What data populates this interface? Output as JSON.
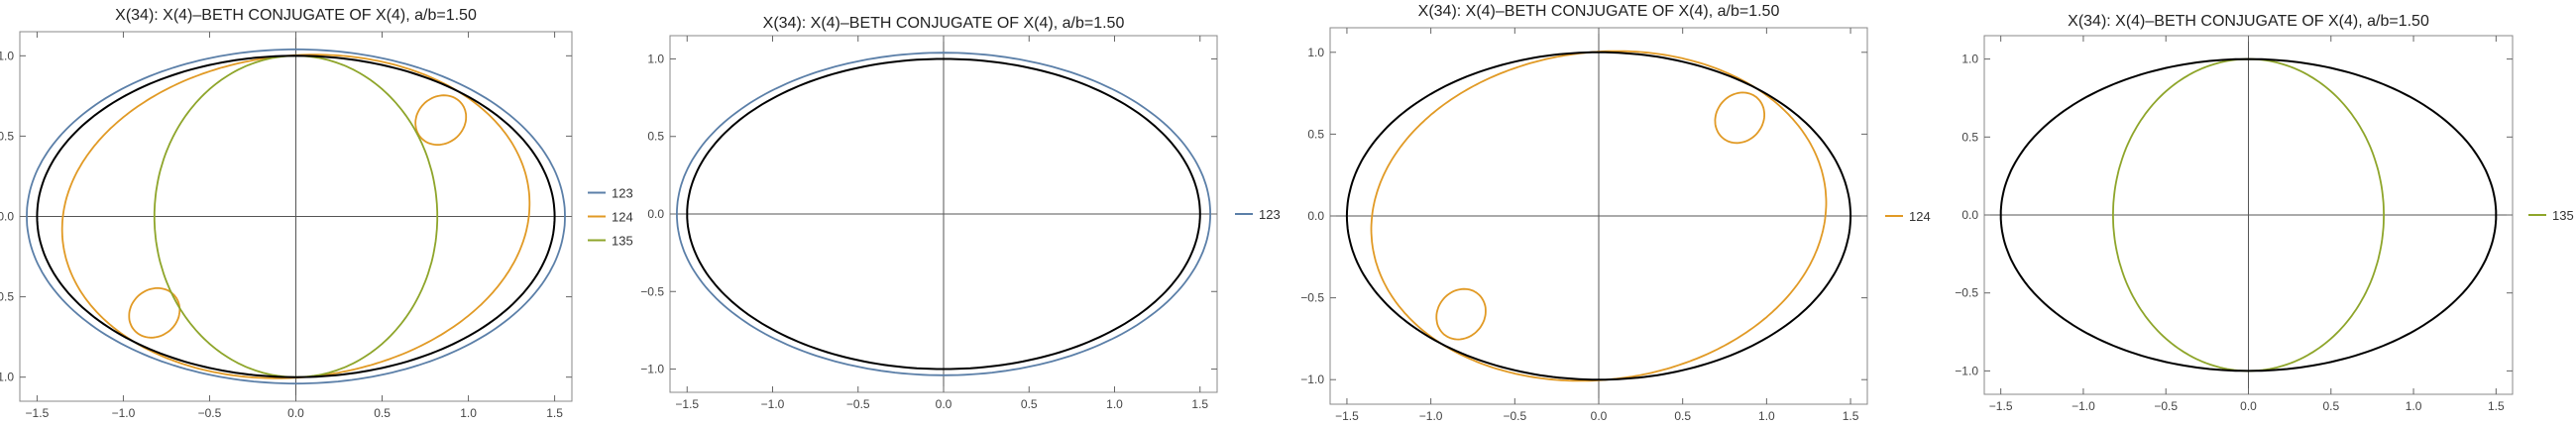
{
  "chart_data": [
    {
      "type": "line",
      "title": "X(34): X(4)–BETH CONJUGATE OF X(4), a/b=1.50",
      "xlim": [
        -1.6,
        1.6
      ],
      "ylim": [
        -1.15,
        1.15
      ],
      "x_ticks": [
        -1.5,
        -1.0,
        -0.5,
        0.0,
        0.5,
        1.0,
        1.5
      ],
      "y_ticks": [
        -1.0,
        -0.5,
        0.0,
        0.5,
        1.0
      ],
      "x_tick_labels": [
        "−1.5",
        "−1.0",
        "−0.5",
        "0.0",
        "0.5",
        "1.0",
        "1.5"
      ],
      "y_tick_labels": [
        "−1.0",
        "−0.5",
        "0.0",
        "0.5",
        "1.0"
      ],
      "axes_through_origin": true,
      "frame": true,
      "legend_position": "right",
      "reference_ellipse": {
        "a": 1.5,
        "b": 1.0,
        "color": "#000000"
      },
      "series": [
        {
          "name": "123",
          "color": "#5b7fa8"
        },
        {
          "name": "124",
          "color": "#e19a25"
        },
        {
          "name": "135",
          "color": "#8ea52a"
        }
      ]
    },
    {
      "type": "line",
      "title": "X(34): X(4)–BETH CONJUGATE OF X(4), a/b=1.50",
      "xlim": [
        -1.6,
        1.6
      ],
      "ylim": [
        -1.15,
        1.15
      ],
      "x_ticks": [
        -1.5,
        -1.0,
        -0.5,
        0.0,
        0.5,
        1.0,
        1.5
      ],
      "y_ticks": [
        -1.0,
        -0.5,
        0.0,
        0.5,
        1.0
      ],
      "x_tick_labels": [
        "−1.5",
        "−1.0",
        "−0.5",
        "0.0",
        "0.5",
        "1.0",
        "1.5"
      ],
      "y_tick_labels": [
        "−1.0",
        "−0.5",
        "0.0",
        "0.5",
        "1.0"
      ],
      "axes_through_origin": true,
      "frame": true,
      "legend_position": "right",
      "reference_ellipse": {
        "a": 1.5,
        "b": 1.0,
        "color": "#000000"
      },
      "series": [
        {
          "name": "123",
          "color": "#5b7fa8"
        }
      ]
    },
    {
      "type": "line",
      "title": "X(34): X(4)–BETH CONJUGATE OF X(4), a/b=1.50",
      "xlim": [
        -1.6,
        1.6
      ],
      "ylim": [
        -1.15,
        1.15
      ],
      "x_ticks": [
        -1.5,
        -1.0,
        -0.5,
        0.0,
        0.5,
        1.0,
        1.5
      ],
      "y_ticks": [
        -1.0,
        -0.5,
        0.0,
        0.5,
        1.0
      ],
      "x_tick_labels": [
        "−1.5",
        "−1.0",
        "−0.5",
        "0.0",
        "0.5",
        "1.0",
        "1.5"
      ],
      "y_tick_labels": [
        "−1.0",
        "−0.5",
        "0.0",
        "0.5",
        "1.0"
      ],
      "axes_through_origin": true,
      "frame": true,
      "legend_position": "right",
      "reference_ellipse": {
        "a": 1.5,
        "b": 1.0,
        "color": "#000000"
      },
      "series": [
        {
          "name": "124",
          "color": "#e19a25"
        }
      ]
    },
    {
      "type": "line",
      "title": "X(34): X(4)–BETH CONJUGATE OF X(4), a/b=1.50",
      "xlim": [
        -1.6,
        1.6
      ],
      "ylim": [
        -1.15,
        1.15
      ],
      "x_ticks": [
        -1.5,
        -1.0,
        -0.5,
        0.0,
        0.5,
        1.0,
        1.5
      ],
      "y_ticks": [
        -1.0,
        -0.5,
        0.0,
        0.5,
        1.0
      ],
      "x_tick_labels": [
        "−1.5",
        "−1.0",
        "−0.5",
        "0.0",
        "0.5",
        "1.0",
        "1.5"
      ],
      "y_tick_labels": [
        "−1.0",
        "−0.5",
        "0.0",
        "0.5",
        "1.0"
      ],
      "axes_through_origin": true,
      "frame": true,
      "legend_position": "right",
      "reference_ellipse": {
        "a": 1.5,
        "b": 1.0,
        "color": "#000000"
      },
      "series": [
        {
          "name": "135",
          "color": "#8ea52a"
        }
      ]
    }
  ]
}
